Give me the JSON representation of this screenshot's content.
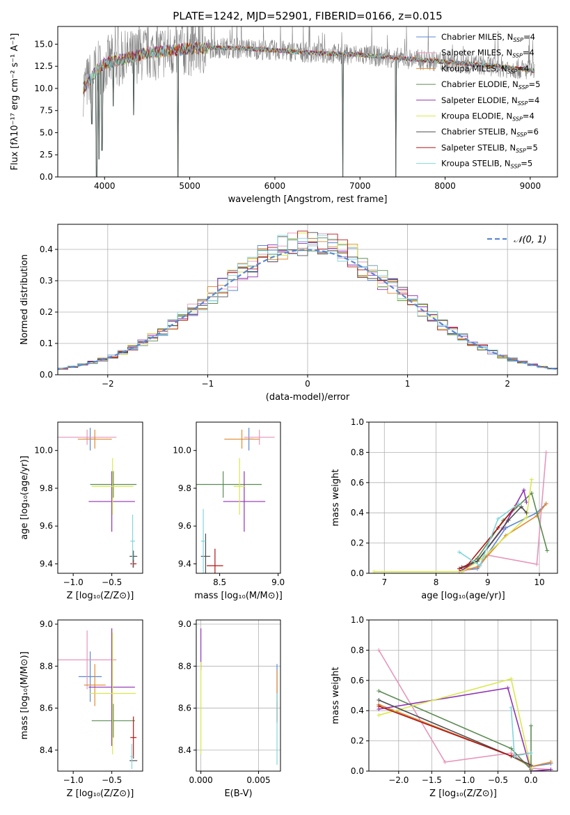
{
  "colors": {
    "Chabrier MILES": "#5b87d3",
    "Salpeter MILES": "#e695ba",
    "Kroupa MILES": "#e08a32",
    "Chabrier ELODIE": "#5a8b52",
    "Salpeter ELODIE": "#8f32b3",
    "Kroupa ELODIE": "#d8e84c",
    "Chabrier STELIB": "#4d4d4d",
    "Salpeter STELIB": "#b21414",
    "Kroupa STELIB": "#7fd6dc",
    "data": "#808080",
    "gauss": "#5b87d3"
  },
  "chart_data": [
    {
      "id": "spectrum",
      "type": "line",
      "title": "PLATE=1242, MJD=52901, FIBERID=0166, z=0.015",
      "xlabel": "wavelength [Angstrom, rest frame]",
      "ylabel": "Flux [fλ10⁻¹⁷ erg cm⁻² s⁻¹ A⁻¹]",
      "xlim": [
        3450,
        9320
      ],
      "ylim": [
        0,
        17
      ],
      "xticks": [
        "4000",
        "5000",
        "6000",
        "7000",
        "8000",
        "9000"
      ],
      "yticks": [
        "0.0",
        "2.5",
        "5.0",
        "7.5",
        "10.0",
        "12.5",
        "15.0"
      ],
      "grid": false,
      "legend_position": "top-right",
      "legend": [
        {
          "name": "Chabrier MILES",
          "n": "4"
        },
        {
          "name": "Salpeter MILES",
          "n": "4"
        },
        {
          "name": "Kroupa MILES",
          "n": "4"
        },
        {
          "name": "Chabrier ELODIE",
          "n": "5"
        },
        {
          "name": "Salpeter ELODIE",
          "n": "4"
        },
        {
          "name": "Kroupa ELODIE",
          "n": "4"
        },
        {
          "name": "Chabrier STELIB",
          "n": "6"
        },
        {
          "name": "Salpeter STELIB",
          "n": "5"
        },
        {
          "name": "Kroupa STELIB",
          "n": "5"
        }
      ],
      "continuum": {
        "x": [
          3750,
          3900,
          4000,
          4300,
          4500,
          5000,
          5500,
          6000,
          6500,
          7000,
          7500,
          8000,
          8500,
          9050
        ],
        "y": [
          10,
          12,
          12.8,
          13.5,
          14,
          14.5,
          14.6,
          14.3,
          14.0,
          13.8,
          13.4,
          13.0,
          12.6,
          12.0
        ]
      },
      "dips": [
        {
          "x": 3850,
          "y": 6
        },
        {
          "x": 3905,
          "y": 0
        },
        {
          "x": 3935,
          "y": 2
        },
        {
          "x": 3970,
          "y": 3
        },
        {
          "x": 4100,
          "y": 8
        },
        {
          "x": 4340,
          "y": 7
        },
        {
          "x": 4861,
          "y": 0
        },
        {
          "x": 6800,
          "y": 0
        },
        {
          "x": 7420,
          "y": 0
        }
      ]
    },
    {
      "id": "residuals",
      "type": "histogram",
      "xlabel": "(data-model)/error",
      "ylabel": "Normed distribution",
      "xlim": [
        -2.5,
        2.5
      ],
      "ylim": [
        0,
        0.48
      ],
      "xticks": [
        "−2",
        "−1",
        "0",
        "1",
        "2"
      ],
      "yticks": [
        "0.0",
        "0.1",
        "0.2",
        "0.3",
        "0.4"
      ],
      "grid": true,
      "legend_position": "top-right",
      "legend_label": "𝒩(0, 1)",
      "bin_width": 0.1
    },
    {
      "id": "age-vs-Z",
      "type": "errorbar",
      "xlabel": "Z [log₁₀(Z/Z⊙)]",
      "ylabel": "age  [log₁₀(age/yr)]",
      "xlim": [
        -1.2,
        -0.1
      ],
      "ylim": [
        9.35,
        10.15
      ],
      "xticks": [
        "−1.0",
        "−0.5"
      ],
      "yticks": [
        "9.4",
        "9.6",
        "9.8",
        "10.0"
      ],
      "grid": false,
      "points": [
        {
          "model": "Chabrier MILES",
          "x": -0.78,
          "xerr": 0.08,
          "y": 10.06,
          "yerr": 0.06
        },
        {
          "model": "Salpeter MILES",
          "x": -0.82,
          "xerr": 0.38,
          "y": 10.07,
          "yerr": 0.04
        },
        {
          "model": "Kroupa MILES",
          "x": -0.72,
          "xerr": 0.22,
          "y": 10.06,
          "yerr": 0.05
        },
        {
          "model": "Chabrier ELODIE",
          "x": -0.48,
          "xerr": 0.3,
          "y": 9.82,
          "yerr": 0.07
        },
        {
          "model": "Salpeter ELODIE",
          "x": -0.5,
          "xerr": 0.3,
          "y": 9.73,
          "yerr": 0.16
        },
        {
          "model": "Kroupa ELODIE",
          "x": -0.49,
          "xerr": 0.27,
          "y": 9.81,
          "yerr": 0.15
        },
        {
          "model": "Chabrier STELIB",
          "x": -0.22,
          "xerr": 0.05,
          "y": 9.44,
          "yerr": 0.03
        },
        {
          "model": "Salpeter STELIB",
          "x": -0.22,
          "xerr": 0.04,
          "y": 9.4,
          "yerr": 0.02
        },
        {
          "model": "Kroupa STELIB",
          "x": -0.23,
          "xerr": 0.03,
          "y": 9.52,
          "yerr": 0.14
        }
      ]
    },
    {
      "id": "age-vs-mass",
      "type": "errorbar",
      "xlabel": "mass [log₁₀(M/M⊙)]",
      "ylabel": "",
      "xlim": [
        8.3,
        9.02
      ],
      "ylim": [
        9.35,
        10.15
      ],
      "xticks": [
        "8.5",
        "9.0"
      ],
      "yticks": [
        "9.4",
        "9.6",
        "9.8",
        "10.0"
      ],
      "grid": false,
      "points": [
        {
          "model": "Chabrier MILES",
          "x": 8.75,
          "xerr": 0.04,
          "y": 10.06,
          "yerr": 0.06
        },
        {
          "model": "Salpeter MILES",
          "x": 8.84,
          "xerr": 0.13,
          "y": 10.07,
          "yerr": 0.04
        },
        {
          "model": "Kroupa MILES",
          "x": 8.69,
          "xerr": 0.15,
          "y": 10.06,
          "yerr": 0.05
        },
        {
          "model": "Chabrier ELODIE",
          "x": 8.53,
          "xerr": 0.33,
          "y": 9.82,
          "yerr": 0.07
        },
        {
          "model": "Salpeter ELODIE",
          "x": 8.71,
          "xerr": 0.18,
          "y": 9.73,
          "yerr": 0.16
        },
        {
          "model": "Kroupa ELODIE",
          "x": 8.67,
          "xerr": 0.05,
          "y": 9.81,
          "yerr": 0.15
        },
        {
          "model": "Chabrier STELIB",
          "x": 8.38,
          "xerr": 0.04,
          "y": 9.44,
          "yerr": 0.12
        },
        {
          "model": "Salpeter STELIB",
          "x": 8.46,
          "xerr": 0.07,
          "y": 9.39,
          "yerr": 0.09
        },
        {
          "model": "Kroupa STELIB",
          "x": 8.36,
          "xerr": 0.02,
          "y": 9.52,
          "yerr": 0.17
        }
      ]
    },
    {
      "id": "weight-vs-age",
      "type": "line",
      "xlabel": "age  [log₁₀(age/yr)]",
      "ylabel": "mass weight",
      "xlim": [
        6.7,
        10.35
      ],
      "ylim": [
        0,
        1.0
      ],
      "xticks": [
        "7",
        "8",
        "9",
        "10"
      ],
      "yticks": [
        "0.0",
        "0.2",
        "0.4",
        "0.6",
        "0.8",
        "1.0"
      ],
      "grid": true,
      "series": [
        {
          "model": "Chabrier MILES",
          "x": [
            8.5,
            8.8,
            9.35,
            9.95,
            10.13
          ],
          "y": [
            0.02,
            0.03,
            0.3,
            0.4,
            0.46
          ]
        },
        {
          "model": "Salpeter MILES",
          "x": [
            8.5,
            8.85,
            9.0,
            9.95,
            10.13
          ],
          "y": [
            0.01,
            0.05,
            0.12,
            0.06,
            0.8
          ]
        },
        {
          "model": "Kroupa MILES",
          "x": [
            8.5,
            8.8,
            9.35,
            9.95,
            10.13
          ],
          "y": [
            0.02,
            0.04,
            0.25,
            0.38,
            0.46
          ]
        },
        {
          "model": "Chabrier ELODIE",
          "x": [
            8.5,
            8.8,
            9.3,
            9.85,
            10.15
          ],
          "y": [
            0.02,
            0.1,
            0.35,
            0.53,
            0.15
          ]
        },
        {
          "model": "Salpeter ELODIE",
          "x": [
            8.45,
            8.8,
            9.3,
            9.7,
            9.75
          ],
          "y": [
            0.01,
            0.08,
            0.3,
            0.55,
            0.47
          ]
        },
        {
          "model": "Kroupa ELODIE",
          "x": [
            6.8,
            8.5,
            8.9,
            9.75,
            9.85
          ],
          "y": [
            0.01,
            0.01,
            0.1,
            0.37,
            0.62
          ]
        },
        {
          "model": "Chabrier STELIB",
          "x": [
            8.5,
            8.8,
            9.4,
            9.65,
            9.75
          ],
          "y": [
            0.04,
            0.08,
            0.35,
            0.44,
            0.4
          ]
        },
        {
          "model": "Salpeter STELIB",
          "x": [
            8.45,
            8.6,
            9.2,
            9.55
          ],
          "y": [
            0.03,
            0.05,
            0.3,
            0.45
          ]
        },
        {
          "model": "Kroupa STELIB",
          "x": [
            8.45,
            8.85,
            9.2,
            9.6
          ],
          "y": [
            0.14,
            0.05,
            0.36,
            0.46
          ]
        }
      ]
    },
    {
      "id": "mass-vs-Z",
      "type": "errorbar",
      "xlabel": "Z [log₁₀(Z/Z⊙)]",
      "ylabel": "mass [log₁₀(M/M⊙)]",
      "xlim": [
        -1.2,
        -0.1
      ],
      "ylim": [
        8.3,
        9.02
      ],
      "xticks": [
        "−1.0",
        "−0.5"
      ],
      "yticks": [
        "8.4",
        "8.6",
        "8.8",
        "9.0"
      ],
      "grid": false,
      "points": [
        {
          "model": "Chabrier MILES",
          "x": -0.78,
          "xerr": 0.15,
          "y": 8.75,
          "yerr": 0.12
        },
        {
          "model": "Salpeter MILES",
          "x": -0.82,
          "xerr": 0.38,
          "y": 8.83,
          "yerr": 0.14
        },
        {
          "model": "Kroupa MILES",
          "x": -0.72,
          "xerr": 0.14,
          "y": 8.71,
          "yerr": 0.1
        },
        {
          "model": "Chabrier ELODIE",
          "x": -0.48,
          "xerr": 0.28,
          "y": 8.54,
          "yerr": 0.08
        },
        {
          "model": "Salpeter ELODIE",
          "x": -0.5,
          "xerr": 0.3,
          "y": 8.7,
          "yerr": 0.28
        },
        {
          "model": "Kroupa ELODIE",
          "x": -0.49,
          "xerr": 0.3,
          "y": 8.67,
          "yerr": 0.29
        },
        {
          "model": "Chabrier STELIB",
          "x": -0.22,
          "xerr": 0.05,
          "y": 8.35,
          "yerr": 0.0
        },
        {
          "model": "Salpeter STELIB",
          "x": -0.22,
          "xerr": 0.04,
          "y": 8.46,
          "yerr": 0.1
        },
        {
          "model": "Kroupa STELIB",
          "x": -0.24,
          "xerr": 0.02,
          "y": 8.37,
          "yerr": 0.06
        }
      ]
    },
    {
      "id": "mass-vs-ebv",
      "type": "errorbar",
      "xlabel": "E(B-V)",
      "ylabel": "",
      "xlim": [
        -0.0004,
        0.0069
      ],
      "ylim": [
        8.3,
        9.02
      ],
      "xticks": [
        "0.000",
        "0.005"
      ],
      "yticks": [
        "8.4",
        "8.6",
        "8.8",
        "9.0"
      ],
      "grid": true,
      "points": [
        {
          "model": "Salpeter ELODIE",
          "x": 0.0,
          "xerr": 0,
          "y": 8.88,
          "yerr": 0.1
        },
        {
          "model": "Kroupa ELODIE",
          "x": 0.0,
          "xerr": 0,
          "y": 8.6,
          "yerr": 0.22
        },
        {
          "model": "Chabrier MILES",
          "x": 0.0066,
          "xerr": 0,
          "y": 8.72,
          "yerr": 0.09
        },
        {
          "model": "Kroupa MILES",
          "x": 0.0066,
          "xerr": 0,
          "y": 8.66,
          "yerr": 0.12
        },
        {
          "model": "Salpeter STELIB",
          "x": 0.0066,
          "xerr": 0,
          "y": 8.58,
          "yerr": 0.05
        },
        {
          "model": "Kroupa STELIB",
          "x": 0.0066,
          "xerr": 0,
          "y": 8.5,
          "yerr": 0.17
        }
      ]
    },
    {
      "id": "weight-vs-Z",
      "type": "line",
      "xlabel": "Z [log₁₀(Z/Z⊙)]",
      "ylabel": "mass weight",
      "xlim": [
        -2.45,
        0.4
      ],
      "ylim": [
        0,
        1.0
      ],
      "xticks": [
        "−2.0",
        "−1.5",
        "−1.0",
        "−0.5",
        "0.0"
      ],
      "yticks": [
        "0.0",
        "0.2",
        "0.4",
        "0.6",
        "0.8",
        "1.0"
      ],
      "grid": true,
      "series": [
        {
          "model": "Chabrier MILES",
          "x": [
            -2.3,
            -0.3,
            0.0,
            0.3
          ],
          "y": [
            0.44,
            0.1,
            0.03,
            0.05
          ]
        },
        {
          "model": "Salpeter MILES",
          "x": [
            -2.3,
            -1.3,
            -0.3,
            0.0,
            0.3
          ],
          "y": [
            0.8,
            0.06,
            0.12,
            0.02,
            0.01
          ]
        },
        {
          "model": "Kroupa MILES",
          "x": [
            -2.3,
            -0.3,
            0.0,
            0.3
          ],
          "y": [
            0.44,
            0.1,
            0.03,
            0.06
          ]
        },
        {
          "model": "Chabrier ELODIE",
          "x": [
            -2.3,
            -0.3,
            0.0,
            0.0
          ],
          "y": [
            0.53,
            0.15,
            0.01,
            0.3
          ]
        },
        {
          "model": "Salpeter ELODIE",
          "x": [
            -2.3,
            -0.35,
            0.0,
            0.3
          ],
          "y": [
            0.41,
            0.55,
            0.0,
            0.01
          ]
        },
        {
          "model": "Kroupa ELODIE",
          "x": [
            -2.3,
            -0.3,
            0.0
          ],
          "y": [
            0.37,
            0.61,
            0.02
          ]
        },
        {
          "model": "Chabrier STELIB",
          "x": [
            -2.3,
            -0.3,
            0.0
          ],
          "y": [
            0.47,
            0.1,
            0.04
          ]
        },
        {
          "model": "Salpeter STELIB",
          "x": [
            -2.3,
            -0.3,
            0.0
          ],
          "y": [
            0.43,
            0.1,
            0.12
          ]
        },
        {
          "model": "Kroupa STELIB",
          "x": [
            -0.3,
            -0.25,
            0.0
          ],
          "y": [
            0.42,
            0.1,
            0.12
          ]
        }
      ]
    }
  ]
}
